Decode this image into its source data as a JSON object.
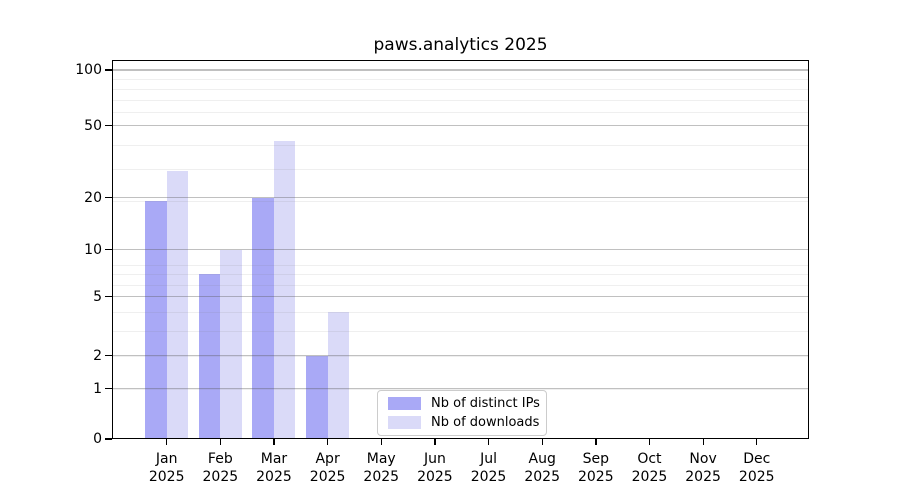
{
  "title": "paws.analytics 2025",
  "legend": {
    "entries": [
      {
        "label": "Nb of distinct IPs",
        "color": "#a9a9f6"
      },
      {
        "label": "Nb of downloads",
        "color": "#dadaf8"
      }
    ],
    "position": "lower center"
  },
  "chart_data": {
    "type": "bar",
    "title": "paws.analytics 2025",
    "categories": [
      "Jan 2025",
      "Feb 2025",
      "Mar 2025",
      "Apr 2025",
      "May 2025",
      "Jun 2025",
      "Jul 2025",
      "Aug 2025",
      "Sep 2025",
      "Oct 2025",
      "Nov 2025",
      "Dec 2025"
    ],
    "series": [
      {
        "name": "Nb of distinct IPs",
        "color": "#a9a9f6",
        "values": [
          19,
          7,
          20,
          2,
          null,
          null,
          null,
          null,
          null,
          null,
          null,
          null
        ]
      },
      {
        "name": "Nb of downloads",
        "color": "#dadaf8",
        "values": [
          28,
          10,
          41,
          4,
          null,
          null,
          null,
          null,
          null,
          null,
          null,
          null
        ]
      }
    ],
    "xlabel": "",
    "ylabel": "",
    "yscale": "log(1+v)",
    "ylim": [
      0,
      100
    ],
    "y_major_ticks": [
      0,
      1,
      2,
      5,
      10,
      20,
      50,
      100
    ],
    "y_minor_ticks_1plusv": [
      2,
      3,
      4,
      5,
      7,
      8,
      9,
      20,
      30,
      40,
      60,
      70,
      80,
      90
    ],
    "grid": true,
    "legend_position": "lower center"
  }
}
